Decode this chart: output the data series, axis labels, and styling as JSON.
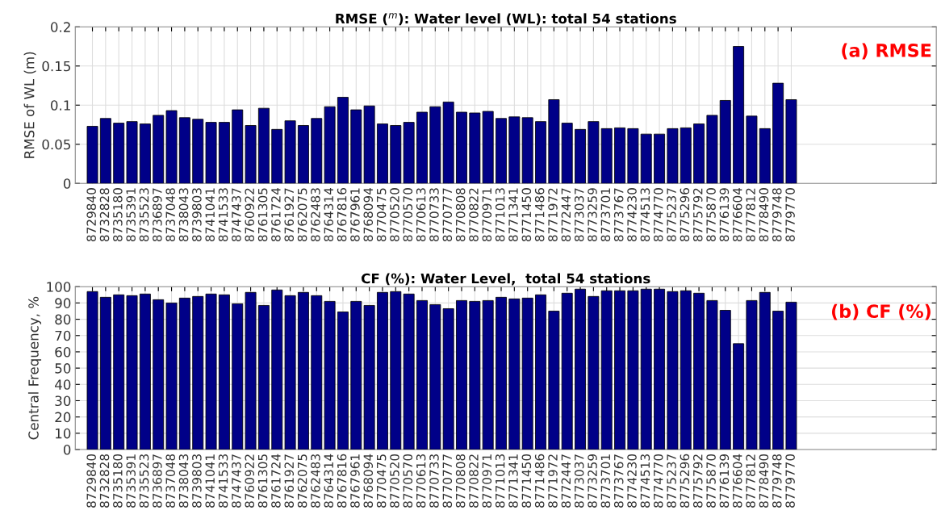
{
  "chart_data": [
    {
      "type": "bar",
      "title": "RMSE ($^{m}$): Water level (WL): total 54 stations",
      "ylabel": "RMSE of WL (m)",
      "annotations": [
        "(a) RMSE"
      ],
      "categories": [
        "8729840",
        "8732828",
        "8735180",
        "8735391",
        "8735523",
        "8736897",
        "8737048",
        "8738043",
        "8739803",
        "8741041",
        "8741533",
        "8747437",
        "8760922",
        "8761305",
        "8761724",
        "8761927",
        "8762075",
        "8762483",
        "8764314",
        "8767816",
        "8767961",
        "8768094",
        "8770475",
        "8770520",
        "8770570",
        "8770613",
        "8770733",
        "8770777",
        "8770808",
        "8770822",
        "8770971",
        "8771013",
        "8771341",
        "8771450",
        "8771486",
        "8771972",
        "8772447",
        "8773037",
        "8773259",
        "8773701",
        "8773767",
        "8774230",
        "8774513",
        "8774770",
        "8775237",
        "8775296",
        "8775792",
        "8775870",
        "8776139",
        "8776604",
        "8777812",
        "8778490",
        "8779748",
        "8779770"
      ],
      "values": [
        0.073,
        0.083,
        0.077,
        0.079,
        0.076,
        0.087,
        0.093,
        0.084,
        0.082,
        0.078,
        0.078,
        0.094,
        0.074,
        0.096,
        0.069,
        0.08,
        0.074,
        0.083,
        0.098,
        0.11,
        0.094,
        0.099,
        0.076,
        0.074,
        0.078,
        0.091,
        0.098,
        0.104,
        0.091,
        0.09,
        0.092,
        0.083,
        0.085,
        0.084,
        0.079,
        0.107,
        0.077,
        0.069,
        0.079,
        0.07,
        0.071,
        0.07,
        0.063,
        0.063,
        0.07,
        0.071,
        0.076,
        0.087,
        0.106,
        0.175,
        0.086,
        0.07,
        0.128,
        0.107
      ],
      "color": "#000088",
      "ylim": [
        0,
        0.2
      ],
      "yticks": [
        0,
        0.05,
        0.1,
        0.15,
        0.2
      ],
      "grid": true
    },
    {
      "type": "bar",
      "title": "CF (%): Water Level,  total 54 stations",
      "ylabel": "Central Frequency, %",
      "annotations": [
        "(b) CF (%)"
      ],
      "categories": [
        "8729840",
        "8732828",
        "8735180",
        "8735391",
        "8735523",
        "8736897",
        "8737048",
        "8738043",
        "8739803",
        "8741041",
        "8741533",
        "8747437",
        "8760922",
        "8761305",
        "8761724",
        "8761927",
        "8762075",
        "8762483",
        "8764314",
        "8767816",
        "8767961",
        "8768094",
        "8770475",
        "8770520",
        "8770570",
        "8770613",
        "8770733",
        "8770777",
        "8770808",
        "8770822",
        "8770971",
        "8771013",
        "8771341",
        "8771450",
        "8771486",
        "8771972",
        "8772447",
        "8773037",
        "8773259",
        "8773701",
        "8773767",
        "8774230",
        "8774513",
        "8774770",
        "8775237",
        "8775296",
        "8775792",
        "8775870",
        "8776139",
        "8776604",
        "8777812",
        "8778490",
        "8779748",
        "8779770"
      ],
      "values": [
        97,
        93.5,
        95,
        94.5,
        95.5,
        92,
        90,
        93,
        94,
        95.5,
        95,
        89.5,
        96.5,
        88.5,
        98,
        94.5,
        96.5,
        94.5,
        91,
        84.5,
        91,
        88.5,
        96.5,
        97,
        95.5,
        91.5,
        89,
        86.5,
        91.5,
        91,
        91.5,
        93.5,
        92.5,
        93,
        95,
        85,
        96,
        98.5,
        94,
        97.5,
        97.5,
        97.5,
        98.5,
        98.5,
        97,
        97.5,
        96,
        91.5,
        85.5,
        65,
        91.5,
        96.5,
        85,
        90.5
      ],
      "color": "#000088",
      "ylim": [
        0,
        100
      ],
      "yticks": [
        0,
        10,
        20,
        30,
        40,
        50,
        60,
        70,
        80,
        90,
        100
      ],
      "grid": true
    }
  ]
}
